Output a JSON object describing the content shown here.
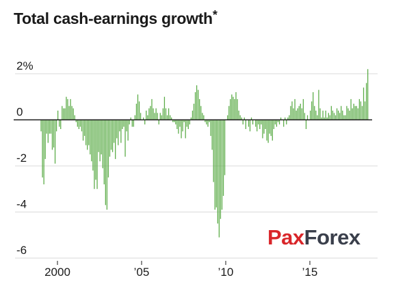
{
  "title": "Total cash-earnings growth",
  "title_mark": "*",
  "watermark": {
    "logo_text": "PaxForex",
    "part1": "Pax",
    "part2": "Forex",
    "colors": {
      "accent": "#d9262a",
      "dark": "#3a3f4b"
    }
  },
  "colors": {
    "bar": "#5aab46",
    "zero_line": "#1a1a1a",
    "grid": "#d9d9d9",
    "text": "#1a1a1a"
  },
  "chart_data": {
    "type": "bar",
    "title": "Total cash-earnings growth*",
    "xlabel": "",
    "ylabel": "",
    "unit": "%",
    "ylim": [
      -6.3,
      2.5
    ],
    "xlim": [
      1997.9,
      2018.55
    ],
    "grid": true,
    "y_ticks": [
      {
        "value": 2,
        "label": "2%"
      },
      {
        "value": 0,
        "label": "0"
      },
      {
        "value": -2,
        "label": "-2"
      },
      {
        "value": -4,
        "label": "-4"
      },
      {
        "value": -6,
        "label": "-6"
      }
    ],
    "x_ticks": [
      {
        "value": 2000,
        "label": "2000"
      },
      {
        "value": 2005,
        "label": "’05"
      },
      {
        "value": 2010,
        "label": "’10"
      },
      {
        "value": 2015,
        "label": "’15"
      }
    ],
    "start_year": 1999,
    "frequency": "monthly",
    "values": [
      -0.5,
      -2.5,
      -2.8,
      -1.7,
      -0.6,
      -1.0,
      -0.6,
      -0.6,
      -1.3,
      -1.2,
      -1.9,
      -0.5,
      0.4,
      -0.3,
      -0.4,
      0.6,
      0.5,
      0.5,
      1.0,
      0.9,
      0.6,
      0.9,
      0.6,
      0.5,
      0.2,
      -0.1,
      -0.3,
      -0.4,
      -0.3,
      -0.5,
      -0.9,
      -0.7,
      -1.1,
      -1.3,
      -1.1,
      -1.5,
      -1.8,
      -2.2,
      -3.0,
      -2.6,
      -3.0,
      -1.4,
      -1.8,
      -1.5,
      -2.1,
      -2.8,
      -3.7,
      -3.9,
      -2.5,
      -1.6,
      -1.3,
      -1.4,
      -1.0,
      -1.7,
      -0.8,
      -1.1,
      -0.5,
      -1.0,
      -0.4,
      -0.3,
      -1.6,
      -0.5,
      -0.9,
      -0.2,
      0.1,
      -0.3,
      -0.3,
      0.2,
      0.7,
      1.1,
      0.8,
      0.3,
      0.0,
      0.1,
      -0.2,
      0.4,
      0.2,
      0.5,
      0.6,
      0.9,
      0.5,
      0.3,
      0.5,
      0.3,
      -0.2,
      0.3,
      0.2,
      0.5,
      1.0,
      0.5,
      0.2,
      0.5,
      0.2,
      0.1,
      -0.1,
      -0.1,
      -0.2,
      -0.4,
      -0.6,
      -0.3,
      -0.8,
      -0.5,
      -0.1,
      -0.8,
      -0.3,
      -0.4,
      -0.2,
      0.1,
      0.4,
      0.7,
      1.2,
      1.5,
      1.3,
      0.9,
      0.6,
      0.3,
      0.2,
      -0.1,
      -0.2,
      -0.3,
      -0.1,
      -0.7,
      -1.3,
      -2.7,
      -3.9,
      -3.8,
      -4.5,
      -5.1,
      -4.3,
      -3.9,
      -3.3,
      -2.4,
      0.0,
      0.2,
      0.6,
      0.9,
      1.1,
      1.0,
      0.9,
      1.2,
      0.9,
      0.4,
      0.2,
      0.1,
      -0.2,
      0.1,
      -0.4,
      0.0,
      -0.3,
      -0.5,
      0.1,
      -0.2,
      0.0,
      -0.3,
      -0.5,
      -0.2,
      -0.4,
      -0.2,
      -0.8,
      -0.6,
      -0.4,
      -0.9,
      -1.0,
      -0.6,
      -0.7,
      -0.9,
      -0.4,
      -0.2,
      -0.3,
      -0.1,
      -0.2,
      0.1,
      0.0,
      -0.3,
      0.1,
      -0.2,
      0.1,
      0.2,
      0.6,
      0.8,
      0.5,
      0.9,
      0.4,
      0.5,
      0.6,
      0.7,
      0.5,
      0.9,
      0.3,
      -0.4,
      0.2,
      0.0,
      0.4,
      0.8,
      1.2,
      0.6,
      0.4,
      0.2,
      1.3,
      0.5,
      0.1,
      0.4,
      0.1,
      0.4,
      0.1,
      0.3,
      0.2,
      0.6,
      0.4,
      0.3,
      0.2,
      0.5,
      0.4,
      0.3,
      0.6,
      0.4,
      0.2,
      0.2,
      0.6,
      0.5,
      0.4,
      0.9,
      0.5,
      0.7,
      0.6,
      0.6,
      0.5,
      0.9,
      0.8,
      0.6,
      1.4,
      0.8,
      1.6,
      2.2
    ]
  }
}
